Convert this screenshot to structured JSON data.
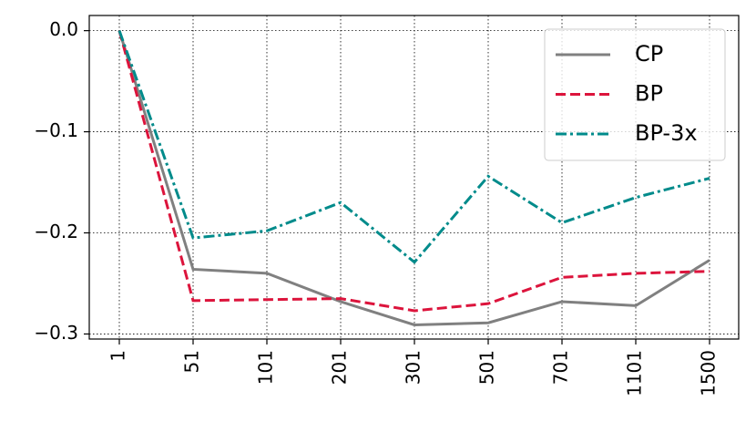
{
  "chart_data": {
    "type": "line",
    "categories": [
      "1",
      "51",
      "101",
      "201",
      "301",
      "501",
      "701",
      "1101",
      "1500"
    ],
    "series": [
      {
        "name": "CP",
        "color": "#808080",
        "style": "solid",
        "values": [
          0,
          -0.236,
          -0.24,
          -0.268,
          -0.291,
          -0.289,
          -0.268,
          -0.272,
          -0.227
        ]
      },
      {
        "name": "BP",
        "color": "#dc143c",
        "style": "dashed",
        "values": [
          0,
          -0.267,
          -0.266,
          -0.265,
          -0.277,
          -0.27,
          -0.244,
          -0.24,
          -0.238
        ]
      },
      {
        "name": "BP-3x",
        "color": "#008b8b",
        "style": "dashdot",
        "values": [
          0,
          -0.205,
          -0.198,
          -0.17,
          -0.229,
          -0.144,
          -0.19,
          -0.165,
          -0.146
        ]
      }
    ],
    "ylim": [
      -0.305,
      0.015
    ],
    "yticks": [
      {
        "value": 0,
        "label": "0.0"
      },
      {
        "value": -0.1,
        "label": "−0.1"
      },
      {
        "value": -0.2,
        "label": "−0.2"
      },
      {
        "value": -0.3,
        "label": "−0.3"
      }
    ],
    "grid": true,
    "legend": "upper right"
  }
}
